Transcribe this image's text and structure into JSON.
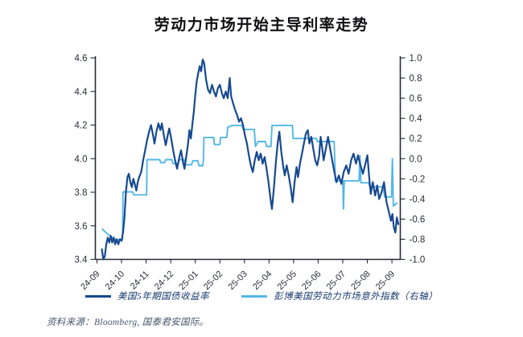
{
  "title": "劳动力市场开始主导利率走势",
  "source_note": "资料来源：Bloomberg, 国泰君安国际。",
  "legend": {
    "items": [
      {
        "label": "美国5年期国债收益率",
        "color": "#17498f"
      },
      {
        "label": "彭博美国劳动力市场意外指数（右轴）",
        "color": "#53b7e8"
      }
    ]
  },
  "colors": {
    "treasury_line": "#17498f",
    "labor_index_line": "#53b7e8",
    "axis": "#262b36",
    "tick_label": "#2b2e36",
    "background": "#ffffff"
  },
  "chart_data": {
    "type": "line",
    "title": "劳动力市场开始主导利率走势",
    "xlabel": "",
    "x_tick_labels": [
      "24-09",
      "24-10",
      "24-11",
      "24-12",
      "25-01",
      "25-02",
      "25-03",
      "25-04",
      "25-05",
      "25-06",
      "25-07",
      "25-08",
      "25-09"
    ],
    "left_axis": {
      "label": "美国5年期国债收益率 (%)",
      "min": 3.4,
      "max": 4.6,
      "tick_labels": [
        "4.6",
        "4.4",
        "4.2",
        "4.0",
        "3.8",
        "3.6",
        "3.4"
      ]
    },
    "right_axis": {
      "label": "彭博美国劳动力市场意外指数",
      "min": -1.0,
      "max": 1.0,
      "tick_labels": [
        "1.0",
        "0.8",
        "0.6",
        "0.4",
        "0.2",
        "0.0",
        "-0.2",
        "-0.4",
        "-0.6",
        "-0.8",
        "-1.0"
      ]
    },
    "grid": false,
    "legend_position": "bottom",
    "x_unit": "months since 24-09 tick",
    "series": [
      {
        "id": "labor-surprise",
        "name": "彭博美国劳动力市场意外指数（右轴）",
        "axis": "right",
        "color": "#53b7e8",
        "width": 1.9,
        "points": [
          [
            0.22,
            -0.7
          ],
          [
            0.35,
            -0.73
          ],
          [
            0.55,
            -0.77
          ],
          [
            0.75,
            -0.8
          ],
          [
            0.95,
            -0.81
          ],
          [
            1.04,
            -0.8
          ],
          [
            1.06,
            -0.33
          ],
          [
            1.45,
            -0.33
          ],
          [
            1.5,
            -0.36
          ],
          [
            2.02,
            -0.36
          ],
          [
            2.04,
            -0.01
          ],
          [
            2.55,
            -0.01
          ],
          [
            2.6,
            -0.04
          ],
          [
            2.75,
            -0.04
          ],
          [
            2.8,
            -0.01
          ],
          [
            3.05,
            -0.01
          ],
          [
            3.1,
            -0.05
          ],
          [
            3.3,
            -0.05
          ],
          [
            3.35,
            -0.01
          ],
          [
            3.55,
            -0.01
          ],
          [
            3.6,
            -0.06
          ],
          [
            3.85,
            -0.06
          ],
          [
            3.9,
            -0.02
          ],
          [
            4.1,
            -0.02
          ],
          [
            4.15,
            -0.07
          ],
          [
            4.3,
            -0.07
          ],
          [
            4.33,
            -0.02
          ],
          [
            4.35,
            0.21
          ],
          [
            4.75,
            0.21
          ],
          [
            4.78,
            0.14
          ],
          [
            5.0,
            0.14
          ],
          [
            5.03,
            0.21
          ],
          [
            5.28,
            0.21
          ],
          [
            5.32,
            0.31
          ],
          [
            5.5,
            0.33
          ],
          [
            5.9,
            0.33
          ],
          [
            5.95,
            0.29
          ],
          [
            6.4,
            0.29
          ],
          [
            6.45,
            0.12
          ],
          [
            6.55,
            0.17
          ],
          [
            6.85,
            0.17
          ],
          [
            6.9,
            0.12
          ],
          [
            7.08,
            0.12
          ],
          [
            7.12,
            0.33
          ],
          [
            7.95,
            0.33
          ],
          [
            7.98,
            0.2
          ],
          [
            8.93,
            0.2
          ],
          [
            8.97,
            0.17
          ],
          [
            9.65,
            0.17
          ],
          [
            9.7,
            -0.22
          ],
          [
            10.0,
            -0.22
          ],
          [
            10.03,
            -0.5
          ],
          [
            10.06,
            -0.22
          ],
          [
            10.66,
            -0.22
          ],
          [
            10.7,
            0.03
          ],
          [
            10.74,
            -0.24
          ],
          [
            11.05,
            -0.24
          ],
          [
            11.1,
            -0.28
          ],
          [
            11.65,
            -0.28
          ],
          [
            11.7,
            -0.38
          ],
          [
            11.98,
            -0.38
          ],
          [
            12.02,
            0.0
          ],
          [
            12.06,
            -0.47
          ],
          [
            12.2,
            -0.44
          ]
        ]
      },
      {
        "id": "treasury-yield",
        "name": "美国5年期国债收益率",
        "axis": "left",
        "color": "#17498f",
        "width": 2.2,
        "points": [
          [
            0.2,
            3.46
          ],
          [
            0.26,
            3.4
          ],
          [
            0.32,
            3.42
          ],
          [
            0.38,
            3.49
          ],
          [
            0.44,
            3.53
          ],
          [
            0.5,
            3.5
          ],
          [
            0.56,
            3.54
          ],
          [
            0.62,
            3.5
          ],
          [
            0.68,
            3.53
          ],
          [
            0.74,
            3.49
          ],
          [
            0.8,
            3.52
          ],
          [
            0.87,
            3.49
          ],
          [
            0.93,
            3.52
          ],
          [
            1.0,
            3.51
          ],
          [
            1.06,
            3.56
          ],
          [
            1.12,
            3.65
          ],
          [
            1.18,
            3.8
          ],
          [
            1.24,
            3.89
          ],
          [
            1.3,
            3.91
          ],
          [
            1.36,
            3.86
          ],
          [
            1.42,
            3.83
          ],
          [
            1.48,
            3.88
          ],
          [
            1.54,
            3.85
          ],
          [
            1.6,
            3.81
          ],
          [
            1.66,
            3.86
          ],
          [
            1.72,
            3.89
          ],
          [
            1.8,
            3.92
          ],
          [
            1.88,
            3.99
          ],
          [
            1.96,
            4.05
          ],
          [
            2.04,
            4.11
          ],
          [
            2.12,
            4.16
          ],
          [
            2.2,
            4.2
          ],
          [
            2.28,
            4.14
          ],
          [
            2.34,
            4.09
          ],
          [
            2.42,
            4.16
          ],
          [
            2.5,
            4.21
          ],
          [
            2.58,
            4.17
          ],
          [
            2.64,
            4.21
          ],
          [
            2.72,
            4.14
          ],
          [
            2.8,
            4.08
          ],
          [
            2.88,
            4.14
          ],
          [
            2.94,
            4.18
          ],
          [
            3.02,
            4.12
          ],
          [
            3.1,
            4.05
          ],
          [
            3.18,
            3.99
          ],
          [
            3.26,
            3.94
          ],
          [
            3.34,
            4.0
          ],
          [
            3.42,
            4.05
          ],
          [
            3.5,
            3.98
          ],
          [
            3.56,
            3.94
          ],
          [
            3.64,
            4.02
          ],
          [
            3.7,
            4.08
          ],
          [
            3.76,
            4.17
          ],
          [
            3.82,
            4.12
          ],
          [
            3.88,
            4.2
          ],
          [
            3.94,
            4.28
          ],
          [
            4.0,
            4.38
          ],
          [
            4.06,
            4.46
          ],
          [
            4.12,
            4.51
          ],
          [
            4.18,
            4.55
          ],
          [
            4.24,
            4.52
          ],
          [
            4.3,
            4.59
          ],
          [
            4.36,
            4.57
          ],
          [
            4.44,
            4.47
          ],
          [
            4.52,
            4.41
          ],
          [
            4.6,
            4.39
          ],
          [
            4.68,
            4.44
          ],
          [
            4.76,
            4.4
          ],
          [
            4.84,
            4.37
          ],
          [
            4.92,
            4.42
          ],
          [
            5.0,
            4.44
          ],
          [
            5.08,
            4.39
          ],
          [
            5.16,
            4.36
          ],
          [
            5.24,
            4.4
          ],
          [
            5.32,
            4.36
          ],
          [
            5.4,
            4.48
          ],
          [
            5.46,
            4.37
          ],
          [
            5.54,
            4.33
          ],
          [
            5.62,
            4.29
          ],
          [
            5.7,
            4.26
          ],
          [
            5.78,
            4.22
          ],
          [
            5.86,
            4.24
          ],
          [
            5.94,
            4.2
          ],
          [
            6.02,
            4.14
          ],
          [
            6.1,
            4.09
          ],
          [
            6.18,
            4.02
          ],
          [
            6.26,
            3.96
          ],
          [
            6.34,
            3.92
          ],
          [
            6.42,
            3.99
          ],
          [
            6.5,
            4.04
          ],
          [
            6.58,
            3.99
          ],
          [
            6.66,
            4.03
          ],
          [
            6.74,
            3.97
          ],
          [
            6.82,
            4.01
          ],
          [
            6.9,
            3.94
          ],
          [
            6.98,
            3.86
          ],
          [
            7.06,
            3.76
          ],
          [
            7.12,
            3.7
          ],
          [
            7.2,
            3.83
          ],
          [
            7.28,
            3.98
          ],
          [
            7.36,
            4.1
          ],
          [
            7.42,
            4.16
          ],
          [
            7.5,
            4.04
          ],
          [
            7.58,
            3.95
          ],
          [
            7.64,
            3.9
          ],
          [
            7.72,
            3.96
          ],
          [
            7.8,
            3.9
          ],
          [
            7.88,
            3.83
          ],
          [
            7.96,
            3.74
          ],
          [
            8.04,
            3.86
          ],
          [
            8.12,
            3.95
          ],
          [
            8.18,
            3.89
          ],
          [
            8.26,
            3.97
          ],
          [
            8.34,
            4.03
          ],
          [
            8.42,
            4.09
          ],
          [
            8.5,
            4.15
          ],
          [
            8.58,
            4.17
          ],
          [
            8.64,
            4.09
          ],
          [
            8.72,
            4.13
          ],
          [
            8.8,
            4.06
          ],
          [
            8.88,
            3.99
          ],
          [
            8.96,
            3.96
          ],
          [
            9.04,
            4.02
          ],
          [
            9.1,
            4.13
          ],
          [
            9.16,
            4.07
          ],
          [
            9.22,
            3.99
          ],
          [
            9.3,
            4.05
          ],
          [
            9.4,
            4.13
          ],
          [
            9.5,
            4.05
          ],
          [
            9.62,
            3.95
          ],
          [
            9.74,
            3.86
          ],
          [
            9.84,
            3.9
          ],
          [
            9.94,
            3.85
          ],
          [
            10.04,
            3.92
          ],
          [
            10.14,
            3.96
          ],
          [
            10.24,
            3.91
          ],
          [
            10.34,
            3.99
          ],
          [
            10.44,
            4.03
          ],
          [
            10.54,
            3.97
          ],
          [
            10.62,
            4.02
          ],
          [
            10.72,
            3.96
          ],
          [
            10.82,
            3.91
          ],
          [
            10.92,
            3.97
          ],
          [
            11.0,
            4.02
          ],
          [
            11.08,
            3.88
          ],
          [
            11.14,
            3.79
          ],
          [
            11.22,
            3.86
          ],
          [
            11.32,
            3.78
          ],
          [
            11.4,
            3.84
          ],
          [
            11.48,
            3.76
          ],
          [
            11.58,
            3.8
          ],
          [
            11.68,
            3.86
          ],
          [
            11.78,
            3.74
          ],
          [
            11.88,
            3.68
          ],
          [
            11.96,
            3.63
          ],
          [
            12.02,
            3.67
          ],
          [
            12.08,
            3.59
          ],
          [
            12.14,
            3.56
          ],
          [
            12.2,
            3.65
          ],
          [
            12.26,
            3.61
          ]
        ]
      }
    ]
  }
}
